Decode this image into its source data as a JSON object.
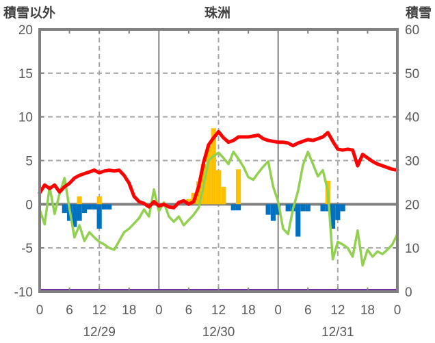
{
  "header": {
    "left_axis_title": "積雪以外",
    "station_title": "珠洲",
    "right_axis_title": "積雪"
  },
  "colors": {
    "red_line": "#FF0000",
    "green_line": "#92D050",
    "orange_bars": "#FFC000",
    "blue_bars": "#0070C0",
    "purple_line": "#7030A0",
    "frame": "#808080",
    "gridline": "#A6A6A6",
    "tick_label": "#595959",
    "title_text": "#404040"
  },
  "chart_data": {
    "type": "line+bar",
    "title": "珠洲",
    "x_unit": "hours from 12/29 00:00 to 1/1 00:00 (72 h)",
    "x_range_hours": [
      0,
      72
    ],
    "x_tick_hours": [
      0,
      6,
      12,
      18,
      24,
      30,
      36,
      42,
      48,
      54,
      60,
      66,
      72
    ],
    "x_tick_labels": [
      "0",
      "6",
      "12",
      "18",
      "0",
      "6",
      "12",
      "18",
      "0",
      "6",
      "12",
      "18",
      "0"
    ],
    "date_labels": [
      {
        "label": "12/29",
        "hour": 12
      },
      {
        "label": "12/30",
        "hour": 36
      },
      {
        "label": "12/31",
        "hour": 60
      }
    ],
    "left_axis": {
      "title": "積雪以外",
      "range": [
        -10,
        20
      ],
      "ticks": [
        20,
        15,
        10,
        5,
        0,
        -5,
        -10
      ]
    },
    "right_axis": {
      "title": "積雪",
      "range": [
        0,
        60
      ],
      "ticks": [
        60,
        50,
        40,
        30,
        20,
        10,
        0
      ]
    },
    "h_gridline_values": [
      15,
      10,
      5,
      -5
    ],
    "noon_hours": [
      12,
      36,
      60
    ],
    "day_boundary_hours": [
      24,
      48
    ],
    "minor_tick_hours": [
      6,
      12,
      18,
      30,
      36,
      42,
      54,
      60,
      66
    ],
    "grid": "dashed",
    "legend": "none shown",
    "series": [
      {
        "name": "orange-bars",
        "type": "bar",
        "axis": "left",
        "color": "#FFC000",
        "points": [
          {
            "hour": 8,
            "value": 0.9
          },
          {
            "hour": 12,
            "value": 0.9
          },
          {
            "hour": 30,
            "value": 0.6
          },
          {
            "hour": 31,
            "value": 1.3
          },
          {
            "hour": 32,
            "value": 2.6
          },
          {
            "hour": 33,
            "value": 4.6
          },
          {
            "hour": 34,
            "value": 6.7
          },
          {
            "hour": 35,
            "value": 8.7
          },
          {
            "hour": 36,
            "value": 3.9
          },
          {
            "hour": 37,
            "value": 2.0
          },
          {
            "hour": 40,
            "value": 4.0
          },
          {
            "hour": 58,
            "value": 2.7
          }
        ]
      },
      {
        "name": "blue-bars",
        "type": "bar",
        "axis": "left",
        "color": "#0070C0",
        "points": [
          {
            "hour": 5,
            "value": -1.0
          },
          {
            "hour": 6,
            "value": -1.9
          },
          {
            "hour": 7,
            "value": -2.6
          },
          {
            "hour": 8,
            "value": -1.9
          },
          {
            "hour": 9,
            "value": -1.0
          },
          {
            "hour": 10,
            "value": -0.6
          },
          {
            "hour": 11,
            "value": -0.6
          },
          {
            "hour": 12,
            "value": -2.8
          },
          {
            "hour": 13,
            "value": -0.6
          },
          {
            "hour": 14,
            "value": -0.6
          },
          {
            "hour": 39,
            "value": -0.7
          },
          {
            "hour": 40,
            "value": -0.7
          },
          {
            "hour": 46,
            "value": -1.2
          },
          {
            "hour": 47,
            "value": -1.9
          },
          {
            "hour": 48,
            "value": -1.2
          },
          {
            "hour": 50,
            "value": -0.8
          },
          {
            "hour": 51,
            "value": -0.8
          },
          {
            "hour": 52,
            "value": -3.7
          },
          {
            "hour": 53,
            "value": -0.8
          },
          {
            "hour": 54,
            "value": -0.8
          },
          {
            "hour": 57,
            "value": -0.8
          },
          {
            "hour": 58,
            "value": -0.8
          },
          {
            "hour": 59,
            "value": -2.8
          },
          {
            "hour": 60,
            "value": -1.8
          },
          {
            "hour": 61,
            "value": -0.8
          }
        ]
      },
      {
        "name": "snow-depth-line",
        "type": "constant-line",
        "axis": "right",
        "color": "#7030A0",
        "width": 3,
        "constant_value": 0
      },
      {
        "name": "green-line",
        "type": "line",
        "axis": "left",
        "color": "#92D050",
        "width": 3.5,
        "x_start": 0,
        "x_step": 1,
        "values": [
          -0.6,
          -2.3,
          2.0,
          -1.1,
          1.2,
          3.0,
          -0.5,
          -3.8,
          -2.4,
          -4.2,
          -3.2,
          -3.8,
          -4.3,
          -4.6,
          -5.0,
          -5.2,
          -4.2,
          -3.2,
          -2.8,
          -2.2,
          -1.6,
          -0.6,
          -1.4,
          1.7,
          -0.8,
          0.2,
          -1.4,
          -2.0,
          -1.4,
          -2.4,
          -1.8,
          -1.2,
          -0.4,
          2.1,
          5.0,
          5.5,
          5.9,
          5.3,
          4.6,
          6.0,
          5.2,
          4.3,
          3.1,
          2.8,
          3.6,
          4.3,
          4.9,
          2.0,
          0.3,
          -2.8,
          -3.4,
          -0.5,
          1.5,
          4.5,
          6.0,
          4.6,
          3.2,
          3.9,
          1.5,
          -6.3,
          -4.3,
          -4.6,
          -5.0,
          -6.0,
          -3.0,
          -7.0,
          -5.2,
          -6.0,
          -5.4,
          -5.7,
          -5.2,
          -4.6,
          -3.4
        ]
      },
      {
        "name": "red-line",
        "type": "line",
        "axis": "left",
        "color": "#FF0000",
        "width": 5,
        "x_start": 0,
        "x_step": 1,
        "values": [
          1.3,
          2.2,
          1.8,
          2.2,
          1.4,
          2.0,
          2.4,
          3.0,
          3.3,
          3.5,
          3.7,
          3.9,
          3.6,
          3.8,
          3.9,
          3.8,
          3.9,
          3.3,
          2.4,
          0.9,
          0.3,
          0.1,
          -0.3,
          0.3,
          -0.2,
          0.0,
          -0.3,
          -0.4,
          0.2,
          0.4,
          0.0,
          0.3,
          2.0,
          4.8,
          6.8,
          7.6,
          8.3,
          7.6,
          7.1,
          7.3,
          7.7,
          7.7,
          7.7,
          7.8,
          7.9,
          7.5,
          7.3,
          7.2,
          7.1,
          7.1,
          7.0,
          6.7,
          7.0,
          7.2,
          7.4,
          7.3,
          7.5,
          7.7,
          8.2,
          7.2,
          6.3,
          6.2,
          6.3,
          6.2,
          4.4,
          5.7,
          5.3,
          4.9,
          4.6,
          4.4,
          4.2,
          4.0,
          3.9
        ]
      }
    ]
  }
}
